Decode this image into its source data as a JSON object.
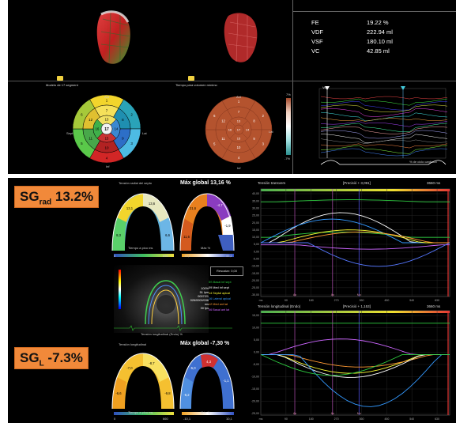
{
  "top": {
    "segment_model_label": "Modelo de 17 segment",
    "min_volume_label": "Tiempo para volumen mínimo",
    "metrics": [
      {
        "key": "FE",
        "value": "19.22 %"
      },
      {
        "key": "VDF",
        "value": "222.94 ml"
      },
      {
        "key": "VSF",
        "value": "180.10 ml"
      },
      {
        "key": "VC",
        "value": "42.85 ml"
      }
    ],
    "bullseye_dirs": {
      "ant": "Ant",
      "sept": "Sept",
      "lat": "Lat",
      "inf": "Inf"
    },
    "bullseye_numbers": [
      "1",
      "2",
      "3",
      "4",
      "5",
      "6",
      "7",
      "8",
      "9",
      "10",
      "11",
      "12",
      "13",
      "14",
      "15",
      "16",
      "17"
    ],
    "scale_top": "7%",
    "scale_bottom": "-7%",
    "curve_label": "Vol",
    "curve_xlabel": "% de ciclo cardíaco"
  },
  "bottom": {
    "badge_rad": {
      "main": "SG",
      "sub": "rad",
      "value": "13.2%"
    },
    "badge_l": {
      "main": "SG",
      "sub": "L",
      "value": "-7.3%"
    },
    "rad_max_global": "Máx global 13,16 %",
    "long_max_global": "Máx global -7,30 %",
    "rad_header_small": "Tensión radial del septo",
    "long_header_small": "Tensión longitudinal",
    "time_peak": "Tiempo a pico ms",
    "max_pct": "Máx %",
    "rad_scale_vals": {
      "a": "0",
      "b": "660",
      "c": "45,2",
      "d": "-45,2"
    },
    "long_scale_vals": {
      "a": "0",
      "b": "660",
      "c": "-10,1",
      "d": "10,1"
    },
    "rad_seg_values": [
      "8,3",
      "13,1",
      "13,6",
      "6,6",
      "21,6",
      "-4,7",
      "11,6",
      "-1,9"
    ],
    "long_seg_values": [
      "-6,6",
      "-7,0",
      "-8,7",
      "-9,8",
      "-5,0",
      "4,3",
      "-1,1",
      "-6,2"
    ],
    "echo_info": [
      "100%",
      "51 lpm",
      "0007/21",
      "026/0000/036 ms",
      "30 fps"
    ],
    "echo_label": "Tensión longitudinal (Endo) %",
    "rescue_label": "Rescatar: 0,00",
    "legend": [
      {
        "text": "5S Basal inf sept",
        "color": "#2ecc40"
      },
      {
        "text": "09 Med inf sept",
        "color": "#ffffff"
      },
      {
        "text": "14 Septal apical",
        "color": "#ffff33"
      },
      {
        "text": "16 Lateral apical",
        "color": "#3399ff"
      },
      {
        "text": "12 Med ant lat",
        "color": "#ff9933"
      },
      {
        "text": "06 Basal ant lat",
        "color": "#cc66ff"
      }
    ],
    "graph1_title": "Tensión transvers",
    "graph1_peak": "[Precisió + 3,091]",
    "graph1_time": "3660 ms",
    "graph1_y": [
      "40,00",
      "35,00",
      "30,00",
      "25,00",
      "20,00",
      "15,00",
      "10,00",
      "5,00",
      "0,00",
      "-5,00",
      "-10,00",
      "-15,00",
      "-20,00",
      "-25,00",
      "-30,00"
    ],
    "graph2_title": "Tensión longitudinal (Endo)",
    "graph2_peak": "[Precisió + 1,153]",
    "graph2_time": "3660 ms",
    "graph2_y": [
      "15,00",
      "10,00",
      "5,00",
      "0,00",
      "-5,00",
      "-10,00",
      "-15,00",
      "-20,00",
      "-25,00"
    ],
    "x_ticks": [
      "ms",
      "90",
      "180",
      "270",
      "360",
      "450",
      "540",
      "630"
    ],
    "marker_labels": [
      "Ao",
      "Ao",
      "Mo"
    ]
  }
}
